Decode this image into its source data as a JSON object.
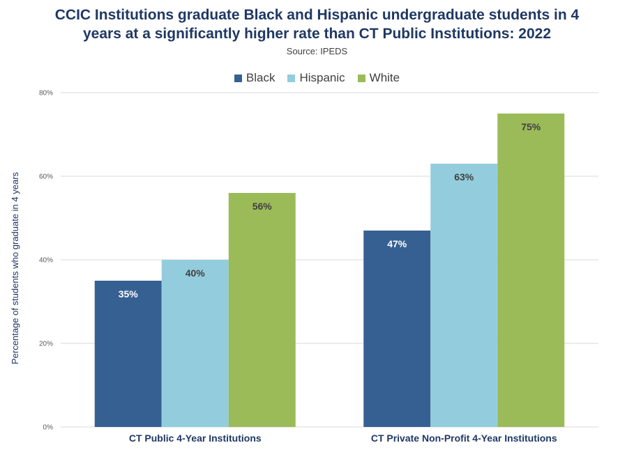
{
  "title_line1": "CCIC Institutions graduate Black and Hispanic undergraduate students in 4",
  "title_line2": "years at a significantly higher rate than CT Public Institutions: 2022",
  "source": "Source: IPEDS",
  "chart_data": {
    "type": "bar",
    "ylabel": "Percentage of students who graduate in 4 years",
    "categories": [
      "CT Public 4-Year Institutions",
      "CT Private Non-Profit 4-Year Institutions"
    ],
    "series": [
      {
        "name": "Black",
        "color": "#376092",
        "values": [
          35,
          47
        ],
        "labels": [
          "35%",
          "47%"
        ],
        "label_color": "#ffffff"
      },
      {
        "name": "Hispanic",
        "color": "#93cddd",
        "values": [
          40,
          63
        ],
        "labels": [
          "40%",
          "63%"
        ],
        "label_color": "#404040"
      },
      {
        "name": "White",
        "color": "#9bbb59",
        "values": [
          56,
          75
        ],
        "labels": [
          "56%",
          "75%"
        ],
        "label_color": "#404040"
      }
    ],
    "ylim": [
      0,
      80
    ],
    "yticks": [
      0,
      20,
      40,
      60,
      80
    ],
    "ytick_labels": [
      "0%",
      "20%",
      "40%",
      "60%",
      "80%"
    ],
    "grid": true,
    "legend_position": "top-center"
  }
}
